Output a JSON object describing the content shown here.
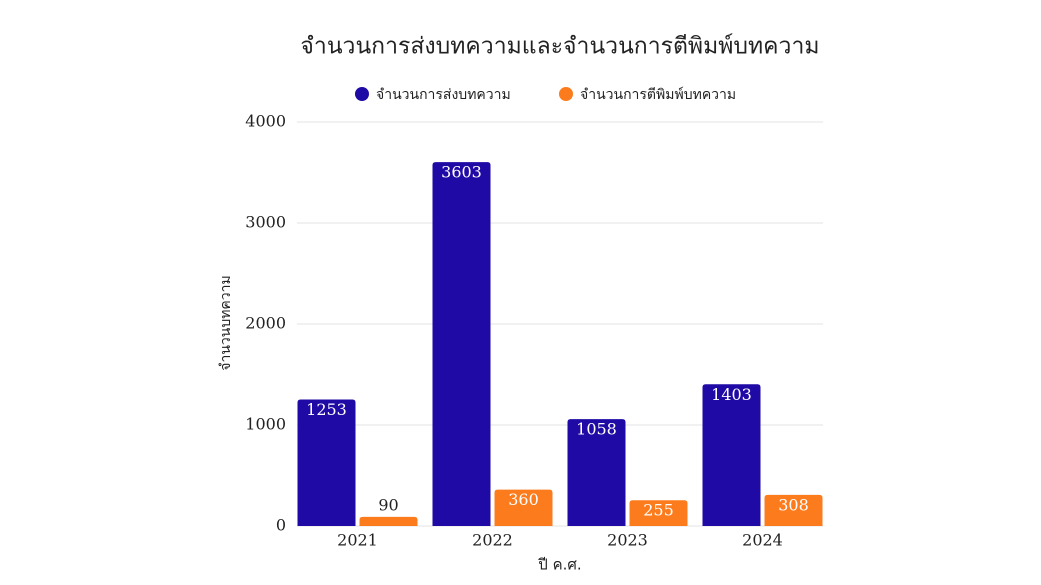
{
  "chart_data": {
    "type": "bar",
    "title": "จำนวนการส่งบทความและจำนวนการตีพิมพ์บทความ",
    "x_label": "ปี ค.ศ.",
    "y_label": "จำนวนบทความ",
    "categories": [
      "2021",
      "2022",
      "2023",
      "2024"
    ],
    "series": [
      {
        "name": "จำนวนการส่งบทความ",
        "color": "#1f0aa5",
        "values": [
          1253,
          3603,
          1058,
          1403
        ]
      },
      {
        "name": "จำนวนการตีพิมพ์บทความ",
        "color": "#fc7b1d",
        "values": [
          90,
          360,
          255,
          308
        ]
      }
    ],
    "ylim": [
      0,
      4000
    ],
    "yticks": [
      0,
      1000,
      2000,
      3000,
      4000
    ],
    "grid": true,
    "legend": "top"
  }
}
